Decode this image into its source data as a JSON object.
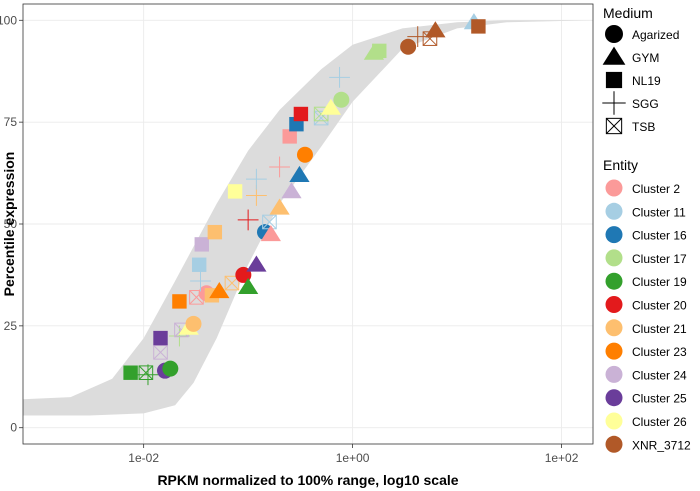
{
  "chart_data": {
    "type": "scatter",
    "xlabel": "RPKM normalized to 100% range, log10 scale",
    "ylabel": "Percentile expression",
    "x_scale": "log10",
    "xlim": [
      0.0007,
      200
    ],
    "ylim": [
      -4,
      104
    ],
    "x_ticks": [
      {
        "value": 0.01,
        "label": "1e-02"
      },
      {
        "value": 1,
        "label": "1e+00"
      },
      {
        "value": 100,
        "label": "1e+02"
      }
    ],
    "y_ticks": [
      {
        "value": 0,
        "label": "0"
      },
      {
        "value": 25,
        "label": "25"
      },
      {
        "value": 50,
        "label": "50"
      },
      {
        "value": 75,
        "label": "75"
      },
      {
        "value": 100,
        "label": "100"
      }
    ],
    "grid": true,
    "background_band": {
      "color": "#dcdcdc",
      "upper": [
        [
          0.0007,
          7
        ],
        [
          0.002,
          7.5
        ],
        [
          0.005,
          12
        ],
        [
          0.01,
          22
        ],
        [
          0.02,
          36
        ],
        [
          0.05,
          55
        ],
        [
          0.1,
          68
        ],
        [
          0.2,
          78
        ],
        [
          0.5,
          88
        ],
        [
          1,
          94
        ],
        [
          3,
          98
        ],
        [
          10,
          99.5
        ],
        [
          30,
          100
        ],
        [
          200,
          100
        ]
      ],
      "lower": [
        [
          200,
          100
        ],
        [
          30,
          99.5
        ],
        [
          10,
          98
        ],
        [
          3,
          93
        ],
        [
          1,
          80
        ],
        [
          0.5,
          69
        ],
        [
          0.2,
          55
        ],
        [
          0.1,
          40
        ],
        [
          0.05,
          22
        ],
        [
          0.03,
          11
        ],
        [
          0.02,
          5.5
        ],
        [
          0.01,
          3.5
        ],
        [
          0.003,
          3
        ],
        [
          0.0007,
          3
        ]
      ]
    },
    "legend_medium": {
      "title": "Medium",
      "items": [
        {
          "label": "Agarized",
          "shape": "circle"
        },
        {
          "label": "GYM",
          "shape": "triangle"
        },
        {
          "label": "NL19",
          "shape": "square"
        },
        {
          "label": "SGG",
          "shape": "plus"
        },
        {
          "label": "TSB",
          "shape": "boxx"
        }
      ]
    },
    "legend_entity": {
      "title": "Entity",
      "items": [
        {
          "label": "Cluster 2",
          "color": "#fb9a99"
        },
        {
          "label": "Cluster 11",
          "color": "#a6cee3"
        },
        {
          "label": "Cluster 16",
          "color": "#1f78b4"
        },
        {
          "label": "Cluster 17",
          "color": "#b2df8a"
        },
        {
          "label": "Cluster 19",
          "color": "#33a02c"
        },
        {
          "label": "Cluster 20",
          "color": "#e31a1c"
        },
        {
          "label": "Cluster 21",
          "color": "#fdbf6f"
        },
        {
          "label": "Cluster 23",
          "color": "#ff7f00"
        },
        {
          "label": "Cluster 24",
          "color": "#cab2d6"
        },
        {
          "label": "Cluster 25",
          "color": "#6a3d9a"
        },
        {
          "label": "Cluster 26",
          "color": "#ffff99"
        },
        {
          "label": "XNR_3712",
          "color": "#b15928"
        }
      ]
    },
    "points": [
      {
        "x": 0.0075,
        "y": 13.5,
        "shape": "square",
        "entity": "Cluster 19"
      },
      {
        "x": 0.011,
        "y": 13,
        "shape": "plus",
        "entity": "Cluster 19"
      },
      {
        "x": 0.0105,
        "y": 13.5,
        "shape": "boxx",
        "entity": "Cluster 19"
      },
      {
        "x": 0.016,
        "y": 14,
        "shape": "circle",
        "entity": "Cluster 25"
      },
      {
        "x": 0.018,
        "y": 14.5,
        "shape": "circle",
        "entity": "Cluster 19"
      },
      {
        "x": 0.0145,
        "y": 18.5,
        "shape": "boxx",
        "entity": "Cluster 24"
      },
      {
        "x": 0.0145,
        "y": 22,
        "shape": "square",
        "entity": "Cluster 25"
      },
      {
        "x": 0.022,
        "y": 22.5,
        "shape": "plus",
        "entity": "Cluster 17"
      },
      {
        "x": 0.023,
        "y": 24,
        "shape": "boxx",
        "entity": "Cluster 24"
      },
      {
        "x": 0.027,
        "y": 24.5,
        "shape": "triangle",
        "entity": "Cluster 26"
      },
      {
        "x": 0.03,
        "y": 25.5,
        "shape": "circle",
        "entity": "Cluster 21"
      },
      {
        "x": 0.022,
        "y": 31,
        "shape": "square",
        "entity": "Cluster 23"
      },
      {
        "x": 0.032,
        "y": 32,
        "shape": "boxx",
        "entity": "Cluster 2"
      },
      {
        "x": 0.04,
        "y": 33,
        "shape": "circle",
        "entity": "Cluster 2"
      },
      {
        "x": 0.045,
        "y": 32.5,
        "shape": "square",
        "entity": "Cluster 21"
      },
      {
        "x": 0.053,
        "y": 33.5,
        "shape": "triangle",
        "entity": "Cluster 23"
      },
      {
        "x": 0.035,
        "y": 36,
        "shape": "plus",
        "entity": "Cluster 11"
      },
      {
        "x": 0.07,
        "y": 35.5,
        "shape": "boxx",
        "entity": "Cluster 21"
      },
      {
        "x": 0.09,
        "y": 37.5,
        "shape": "circle",
        "entity": "Cluster 20"
      },
      {
        "x": 0.1,
        "y": 34.5,
        "shape": "triangle",
        "entity": "Cluster 19"
      },
      {
        "x": 0.12,
        "y": 40,
        "shape": "triangle",
        "entity": "Cluster 25"
      },
      {
        "x": 0.034,
        "y": 40,
        "shape": "square",
        "entity": "Cluster 11"
      },
      {
        "x": 0.036,
        "y": 45,
        "shape": "square",
        "entity": "Cluster 24"
      },
      {
        "x": 0.048,
        "y": 48,
        "shape": "square",
        "entity": "Cluster 21"
      },
      {
        "x": 0.1,
        "y": 51,
        "shape": "plus",
        "entity": "Cluster 20"
      },
      {
        "x": 0.145,
        "y": 48,
        "shape": "circle",
        "entity": "Cluster 16"
      },
      {
        "x": 0.16,
        "y": 50.5,
        "shape": "boxx",
        "entity": "Cluster 11"
      },
      {
        "x": 0.165,
        "y": 47.5,
        "shape": "triangle",
        "entity": "Cluster 2"
      },
      {
        "x": 0.2,
        "y": 54,
        "shape": "triangle",
        "entity": "Cluster 21"
      },
      {
        "x": 0.075,
        "y": 58,
        "shape": "square",
        "entity": "Cluster 26"
      },
      {
        "x": 0.12,
        "y": 57,
        "shape": "plus",
        "entity": "Cluster 21"
      },
      {
        "x": 0.12,
        "y": 61,
        "shape": "plus",
        "entity": "Cluster 11"
      },
      {
        "x": 0.26,
        "y": 58,
        "shape": "triangle",
        "entity": "Cluster 24"
      },
      {
        "x": 0.31,
        "y": 62,
        "shape": "triangle",
        "entity": "Cluster 16"
      },
      {
        "x": 0.35,
        "y": 67,
        "shape": "circle",
        "entity": "Cluster 23"
      },
      {
        "x": 0.2,
        "y": 64,
        "shape": "plus",
        "entity": "Cluster 2"
      },
      {
        "x": 0.25,
        "y": 71.5,
        "shape": "square",
        "entity": "Cluster 2"
      },
      {
        "x": 0.29,
        "y": 74.5,
        "shape": "square",
        "entity": "Cluster 16"
      },
      {
        "x": 0.32,
        "y": 77,
        "shape": "square",
        "entity": "Cluster 20"
      },
      {
        "x": 0.5,
        "y": 76,
        "shape": "boxx",
        "entity": "Cluster 11"
      },
      {
        "x": 0.5,
        "y": 77,
        "shape": "boxx",
        "entity": "Cluster 17"
      },
      {
        "x": 0.62,
        "y": 78.5,
        "shape": "triangle",
        "entity": "Cluster 26"
      },
      {
        "x": 0.78,
        "y": 80.5,
        "shape": "circle",
        "entity": "Cluster 17"
      },
      {
        "x": 0.75,
        "y": 86,
        "shape": "plus",
        "entity": "Cluster 11"
      },
      {
        "x": 1.6,
        "y": 92,
        "shape": "triangle",
        "entity": "Cluster 17"
      },
      {
        "x": 1.8,
        "y": 92.5,
        "shape": "square",
        "entity": "Cluster 17"
      },
      {
        "x": 3.4,
        "y": 93.5,
        "shape": "circle",
        "entity": "XNR_3712"
      },
      {
        "x": 4.2,
        "y": 96,
        "shape": "plus",
        "entity": "XNR_3712"
      },
      {
        "x": 5.5,
        "y": 95.5,
        "shape": "boxx",
        "entity": "XNR_3712"
      },
      {
        "x": 6.2,
        "y": 97.5,
        "shape": "triangle",
        "entity": "XNR_3712"
      },
      {
        "x": 14.5,
        "y": 99.5,
        "shape": "triangle",
        "entity": "Cluster 11"
      },
      {
        "x": 16,
        "y": 98.5,
        "shape": "square",
        "entity": "XNR_3712"
      }
    ]
  }
}
